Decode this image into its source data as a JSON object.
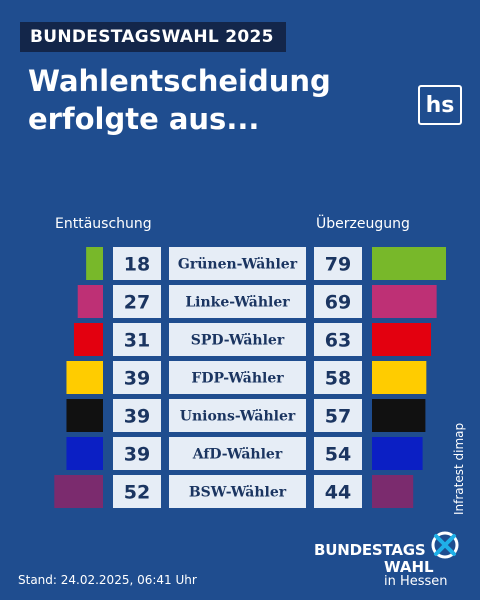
{
  "header": {
    "badge": "BUNDESTAGSWAHL 2025",
    "title_line1": "Wahlentscheidung",
    "title_line2": "erfolgte aus...",
    "logo": "hs"
  },
  "colors": {
    "background": "#1f4d8f",
    "label_box": "#e6edf6",
    "label_text": "#1b3561"
  },
  "chart_data": {
    "type": "bar",
    "left_label": "Enttäuschung",
    "right_label": "Überzeugung",
    "categories": [
      "Grünen-Wähler",
      "Linke-Wähler",
      "SPD-Wähler",
      "FDP-Wähler",
      "Unions-Wähler",
      "AfD-Wähler",
      "BSW-Wähler"
    ],
    "colors": [
      "#78b82a",
      "#be3075",
      "#e3000f",
      "#ffcc00",
      "#111111",
      "#0b1fc4",
      "#7b2b6e"
    ],
    "series": [
      {
        "name": "Enttäuschung",
        "values": [
          18,
          27,
          31,
          39,
          39,
          39,
          52
        ]
      },
      {
        "name": "Überzeugung",
        "values": [
          79,
          69,
          63,
          58,
          57,
          54,
          44
        ]
      }
    ]
  },
  "footer": {
    "source": "Infratest dimap",
    "stand": "Stand: 24.02.2025, 06:41 Uhr",
    "logo_line1": "BUNDESTAGS",
    "logo_line2": "WAHL",
    "logo_line3": "in Hessen"
  }
}
